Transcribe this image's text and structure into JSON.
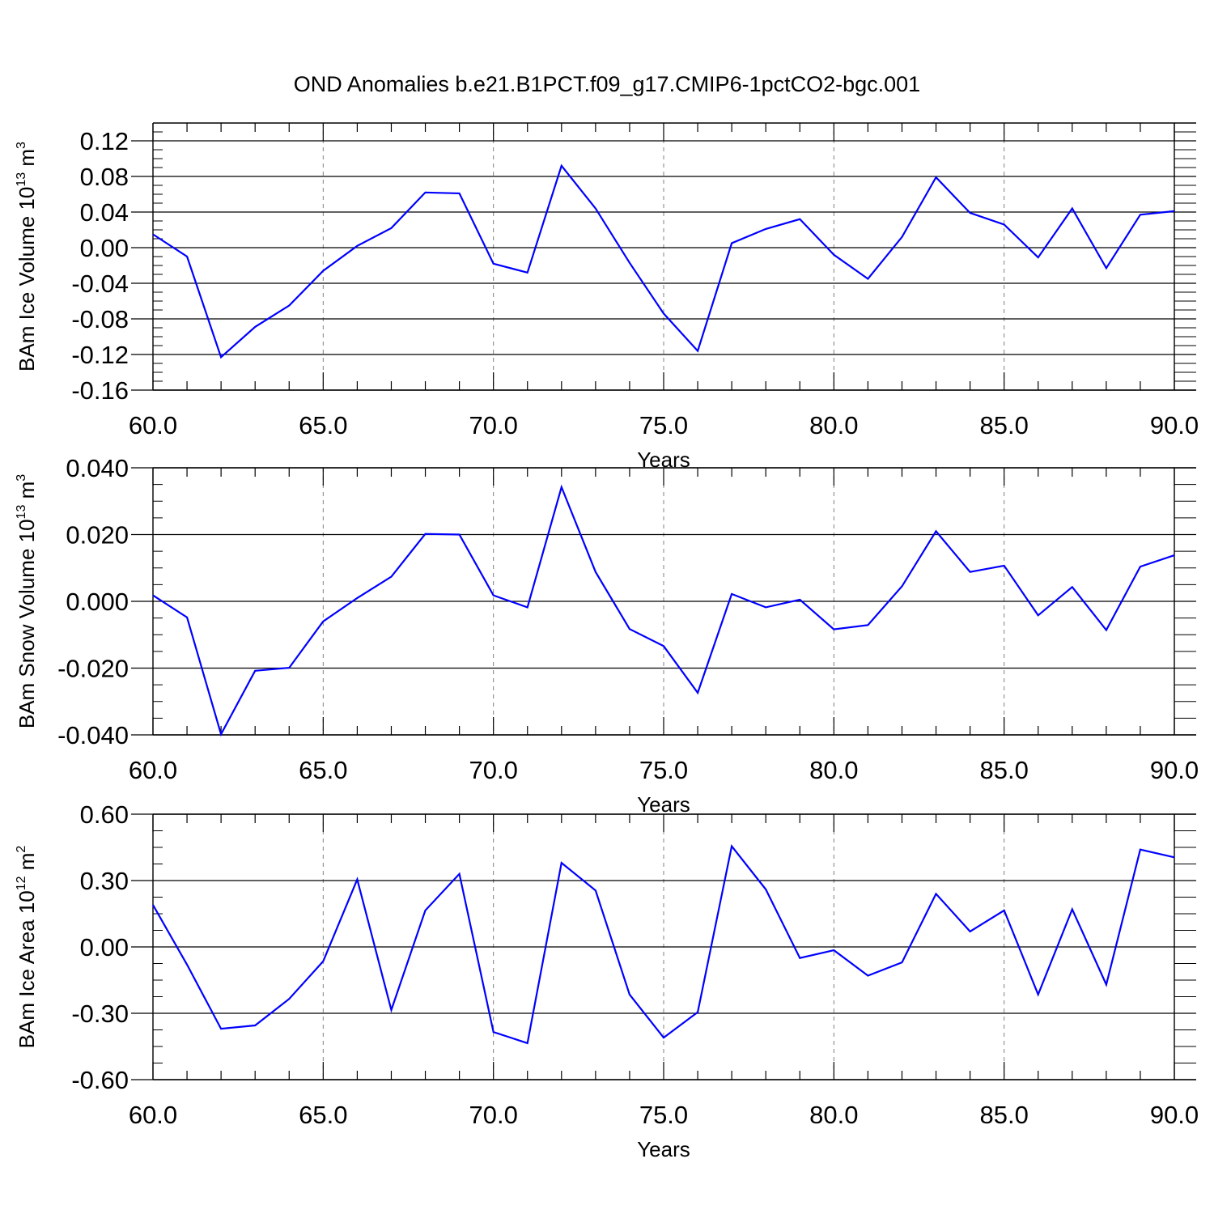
{
  "title": "OND Anomalies b.e21.B1PCT.f09_g17.CMIP6-1pctCO2-bgc.001",
  "colors": {
    "line": "#0000ff",
    "axis": "#000000",
    "grid": "#808080"
  },
  "chart_data": [
    {
      "type": "line",
      "ylabel": "BAm Ice Volume 10",
      "ylabel_exp": "13",
      "ylabel_unit": " m",
      "ylabel_unit_exp": "3",
      "xlabel": "Years",
      "xlim": [
        60,
        90
      ],
      "ylim": [
        -0.16,
        0.14
      ],
      "yticks": [
        -0.16,
        -0.12,
        -0.08,
        -0.04,
        0.0,
        0.04,
        0.08,
        0.12
      ],
      "ytick_labels": [
        "-0.16",
        "-0.12",
        "-0.08",
        "-0.04",
        "0.00",
        "0.04",
        "0.08",
        "0.12"
      ],
      "xticks": [
        60,
        65,
        70,
        75,
        80,
        85,
        90
      ],
      "xtick_labels": [
        "60.0",
        "65.0",
        "70.0",
        "75.0",
        "80.0",
        "85.0",
        "90.0"
      ],
      "grid": "vertical dashed at major x ticks",
      "x": [
        60,
        61,
        62,
        63,
        64,
        65,
        66,
        67,
        68,
        69,
        70,
        71,
        72,
        73,
        74,
        75,
        76,
        77,
        78,
        79,
        80,
        81,
        82,
        83,
        84,
        85,
        86,
        87,
        88,
        89,
        90
      ],
      "y": [
        0.015,
        -0.01,
        -0.123,
        -0.089,
        -0.065,
        -0.026,
        0.002,
        0.022,
        0.062,
        0.061,
        -0.018,
        -0.028,
        0.092,
        0.044,
        -0.017,
        -0.074,
        -0.116,
        0.005,
        0.021,
        0.032,
        -0.008,
        -0.035,
        0.012,
        0.079,
        0.039,
        0.026,
        -0.011,
        0.044,
        -0.023,
        0.037,
        0.041
      ]
    },
    {
      "type": "line",
      "ylabel": "BAm Snow Volume 10",
      "ylabel_exp": "13",
      "ylabel_unit": " m",
      "ylabel_unit_exp": "3",
      "xlabel": "Years",
      "xlim": [
        60,
        90
      ],
      "ylim": [
        -0.04,
        0.04
      ],
      "yticks": [
        -0.04,
        -0.02,
        0.0,
        0.02,
        0.04
      ],
      "ytick_labels": [
        "-0.040",
        "-0.020",
        "0.000",
        "0.020",
        "0.040"
      ],
      "xticks": [
        60,
        65,
        70,
        75,
        80,
        85,
        90
      ],
      "xtick_labels": [
        "60.0",
        "65.0",
        "70.0",
        "75.0",
        "80.0",
        "85.0",
        "90.0"
      ],
      "grid": "vertical dashed at major x ticks",
      "x": [
        60,
        61,
        62,
        63,
        64,
        65,
        66,
        67,
        68,
        69,
        70,
        71,
        72,
        73,
        74,
        75,
        76,
        77,
        78,
        79,
        80,
        81,
        82,
        83,
        84,
        85,
        86,
        87,
        88,
        89,
        90
      ],
      "y": [
        0.0018,
        -0.0048,
        -0.0398,
        -0.0208,
        -0.0199,
        -0.006,
        0.001,
        0.0074,
        0.0202,
        0.02,
        0.0018,
        -0.0018,
        0.0342,
        0.0088,
        -0.0083,
        -0.0134,
        -0.0274,
        0.0022,
        -0.0018,
        0.0005,
        -0.0084,
        -0.0071,
        0.0045,
        0.021,
        0.0088,
        0.0107,
        -0.0042,
        0.0043,
        -0.0086,
        0.0104,
        0.0138
      ]
    },
    {
      "type": "line",
      "ylabel": "BAm Ice Area 10",
      "ylabel_exp": "12",
      "ylabel_unit": " m",
      "ylabel_unit_exp": "2",
      "xlabel": "Years",
      "xlim": [
        60,
        90
      ],
      "ylim": [
        -0.6,
        0.6
      ],
      "yticks": [
        -0.6,
        -0.3,
        0.0,
        0.3,
        0.6
      ],
      "ytick_labels": [
        "-0.60",
        "-0.30",
        "0.00",
        "0.30",
        "0.60"
      ],
      "xticks": [
        60,
        65,
        70,
        75,
        80,
        85,
        90
      ],
      "xtick_labels": [
        "60.0",
        "65.0",
        "70.0",
        "75.0",
        "80.0",
        "85.0",
        "90.0"
      ],
      "grid": "vertical dashed at major x ticks",
      "x": [
        60,
        61,
        62,
        63,
        64,
        65,
        66,
        67,
        68,
        69,
        70,
        71,
        72,
        73,
        74,
        75,
        76,
        77,
        78,
        79,
        80,
        81,
        82,
        83,
        84,
        85,
        86,
        87,
        88,
        89,
        90
      ],
      "y": [
        0.19,
        -0.08,
        -0.37,
        -0.355,
        -0.235,
        -0.065,
        0.305,
        -0.285,
        0.165,
        0.33,
        -0.385,
        -0.435,
        0.38,
        0.255,
        -0.215,
        -0.41,
        -0.295,
        0.455,
        0.26,
        -0.05,
        -0.015,
        -0.13,
        -0.07,
        0.24,
        0.07,
        0.165,
        -0.215,
        0.17,
        -0.17,
        0.44,
        0.405
      ]
    }
  ]
}
